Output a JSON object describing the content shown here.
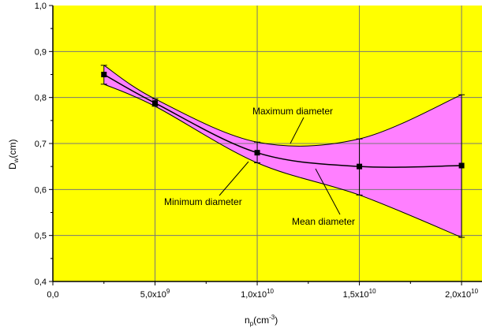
{
  "chart_data": {
    "type": "line",
    "title": "",
    "xlabel": "n",
    "xlabel_sub": "p",
    "xlabel_unit": "(cm",
    "xlabel_unit_sup": "-3",
    "xlabel_close": ")",
    "ylabel": "D",
    "ylabel_sub": "w",
    "ylabel_unit": "(cm)",
    "xlim": [
      0,
      21000000000
    ],
    "ylim": [
      0.4,
      1.0
    ],
    "grid": true,
    "background_color": "#ffff00",
    "band_color": "#ff7fff",
    "x_ticks": [
      {
        "value": 0,
        "mant": "0,0",
        "exp": ""
      },
      {
        "value": 5000000000,
        "mant": "5,0x10",
        "exp": "9"
      },
      {
        "value": 10000000000,
        "mant": "1,0x10",
        "exp": "10"
      },
      {
        "value": 15000000000,
        "mant": "1,5x10",
        "exp": "10"
      },
      {
        "value": 20000000000,
        "mant": "2,0x10",
        "exp": "10"
      }
    ],
    "y_ticks": [
      {
        "value": 0.4,
        "label": "0,4"
      },
      {
        "value": 0.5,
        "label": "0,5"
      },
      {
        "value": 0.6,
        "label": "0,6"
      },
      {
        "value": 0.7,
        "label": "0,7"
      },
      {
        "value": 0.8,
        "label": "0,8"
      },
      {
        "value": 0.9,
        "label": "0,9"
      },
      {
        "value": 1.0,
        "label": "1,0"
      }
    ],
    "series": [
      {
        "name": "Mean diameter",
        "x": [
          2500000000,
          5000000000,
          10000000000,
          15000000000,
          20000000000
        ],
        "y": [
          0.85,
          0.788,
          0.68,
          0.65,
          0.652
        ]
      },
      {
        "name": "Maximum diameter",
        "x": [
          2500000000,
          5000000000,
          10000000000,
          15000000000,
          20000000000
        ],
        "y": [
          0.87,
          0.797,
          0.703,
          0.71,
          0.806
        ]
      },
      {
        "name": "Minimum diameter",
        "x": [
          2500000000,
          5000000000,
          10000000000,
          15000000000,
          20000000000
        ],
        "y": [
          0.829,
          0.781,
          0.658,
          0.588,
          0.496
        ]
      }
    ],
    "annotations": {
      "maximum": "Maximum diameter",
      "minimum": "Minimum diameter",
      "mean": "Mean diameter"
    }
  }
}
